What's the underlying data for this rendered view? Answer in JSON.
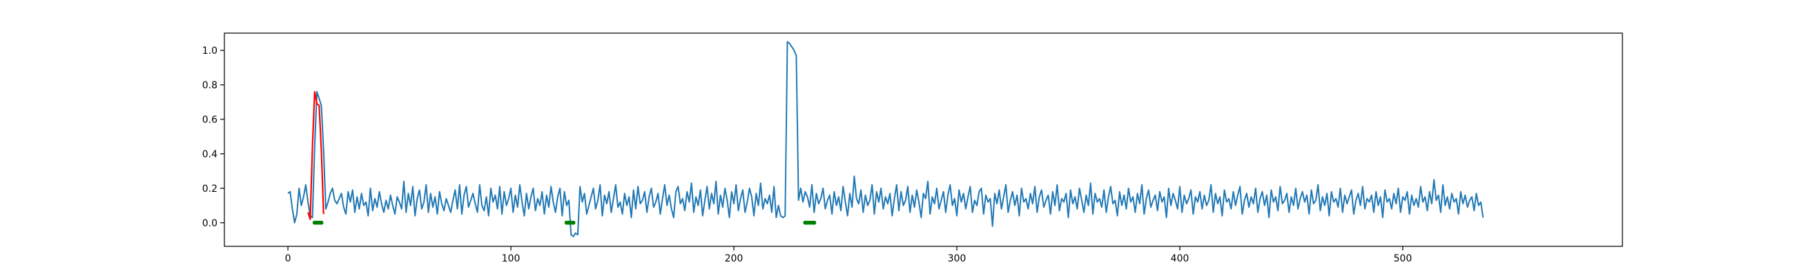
{
  "chart_data": {
    "type": "line",
    "title": "",
    "xlabel": "",
    "ylabel": "",
    "xlim": [
      -28.5,
      598.5
    ],
    "ylim": [
      -0.137,
      1.1
    ],
    "xticks": [
      0,
      100,
      200,
      300,
      400,
      500
    ],
    "yticks": [
      0.0,
      0.2,
      0.4,
      0.6,
      0.8,
      1.0
    ],
    "xtick_labels": [
      "0",
      "100",
      "200",
      "300",
      "400",
      "500"
    ],
    "ytick_labels": [
      "0.0",
      "0.2",
      "0.4",
      "0.6",
      "0.8",
      "1.0"
    ],
    "grid": false,
    "series": [
      {
        "color": "#1f77b4",
        "x_start": 0,
        "values": [
          0.17,
          0.18,
          0.08,
          0.0,
          0.05,
          0.2,
          0.1,
          0.15,
          0.22,
          0.12,
          0.04,
          0.03,
          0.44,
          0.76,
          0.72,
          0.68,
          0.42,
          0.08,
          0.12,
          0.17,
          0.2,
          0.13,
          0.11,
          0.14,
          0.17,
          0.09,
          0.05,
          0.18,
          0.12,
          0.19,
          0.06,
          0.15,
          0.08,
          0.17,
          0.1,
          0.12,
          0.04,
          0.2,
          0.07,
          0.14,
          0.09,
          0.18,
          0.11,
          0.06,
          0.13,
          0.08,
          0.16,
          0.1,
          0.05,
          0.15,
          0.12,
          0.08,
          0.24,
          0.06,
          0.17,
          0.1,
          0.21,
          0.04,
          0.14,
          0.19,
          0.08,
          0.12,
          0.22,
          0.06,
          0.17,
          0.09,
          0.15,
          0.05,
          0.18,
          0.11,
          0.07,
          0.14,
          0.1,
          0.06,
          0.13,
          0.19,
          0.08,
          0.22,
          0.05,
          0.16,
          0.21,
          0.09,
          0.13,
          0.17,
          0.11,
          0.06,
          0.22,
          0.1,
          0.07,
          0.15,
          0.04,
          0.2,
          0.12,
          0.16,
          0.08,
          0.21,
          0.05,
          0.18,
          0.1,
          0.14,
          0.2,
          0.06,
          0.16,
          0.09,
          0.22,
          0.12,
          0.04,
          0.17,
          0.08,
          0.15,
          0.2,
          0.07,
          0.14,
          0.1,
          0.18,
          0.05,
          0.16,
          0.09,
          0.21,
          0.12,
          0.06,
          0.15,
          0.2,
          0.04,
          0.18,
          0.1,
          0.13,
          -0.07,
          -0.08,
          -0.06,
          -0.07,
          0.21,
          0.12,
          0.17,
          0.05,
          0.1,
          0.15,
          0.2,
          0.08,
          0.13,
          0.22,
          0.04,
          0.16,
          0.11,
          0.18,
          0.06,
          0.14,
          0.22,
          0.09,
          0.12,
          0.05,
          0.17,
          0.1,
          0.15,
          0.03,
          0.19,
          0.08,
          0.21,
          0.11,
          0.13,
          0.18,
          0.06,
          0.15,
          0.2,
          0.09,
          0.12,
          0.17,
          0.05,
          0.14,
          0.22,
          0.1,
          0.16,
          0.08,
          0.03,
          0.18,
          0.21,
          0.11,
          0.14,
          0.07,
          0.18,
          0.12,
          0.23,
          0.06,
          0.15,
          0.1,
          0.19,
          0.04,
          0.13,
          0.21,
          0.08,
          0.17,
          0.11,
          0.24,
          0.05,
          0.16,
          0.09,
          0.2,
          0.13,
          0.03,
          0.18,
          0.11,
          0.22,
          0.07,
          0.14,
          0.19,
          0.06,
          0.12,
          0.2,
          0.15,
          0.04,
          0.17,
          0.1,
          0.23,
          0.08,
          0.14,
          0.11,
          0.16,
          0.06,
          0.21,
          0.03,
          0.1,
          0.04,
          0.03,
          0.04,
          1.05,
          1.04,
          1.02,
          1.0,
          0.97,
          0.13,
          0.2,
          0.12,
          0.18,
          0.15,
          0.09,
          0.22,
          0.06,
          0.17,
          0.11,
          0.14,
          0.2,
          0.08,
          0.13,
          0.16,
          0.05,
          0.18,
          0.1,
          0.15,
          0.07,
          0.21,
          0.12,
          0.04,
          0.17,
          0.09,
          0.27,
          0.14,
          0.11,
          0.19,
          0.06,
          0.16,
          0.1,
          0.13,
          0.22,
          0.05,
          0.18,
          0.12,
          0.2,
          0.08,
          0.15,
          0.11,
          0.17,
          0.04,
          0.14,
          0.22,
          0.07,
          0.18,
          0.1,
          0.13,
          0.21,
          0.06,
          0.16,
          0.09,
          0.19,
          0.12,
          0.03,
          0.17,
          0.14,
          0.24,
          0.05,
          0.15,
          0.11,
          0.2,
          0.08,
          0.13,
          0.18,
          0.06,
          0.16,
          0.22,
          0.1,
          0.14,
          0.04,
          0.19,
          0.12,
          0.17,
          0.08,
          0.15,
          0.21,
          0.06,
          0.13,
          0.1,
          0.18,
          0.2,
          0.05,
          0.16,
          0.12,
          0.14,
          -0.02,
          0.17,
          0.11,
          0.19,
          0.08,
          0.15,
          0.22,
          0.06,
          0.13,
          0.18,
          0.1,
          0.16,
          0.04,
          0.2,
          0.12,
          0.14,
          0.08,
          0.17,
          0.11,
          0.21,
          0.06,
          0.15,
          0.19,
          0.09,
          0.13,
          0.16,
          0.05,
          0.18,
          0.1,
          0.22,
          0.07,
          0.14,
          0.12,
          0.17,
          0.03,
          0.19,
          0.11,
          0.15,
          0.08,
          0.2,
          0.13,
          0.06,
          0.16,
          0.1,
          0.23,
          0.05,
          0.17,
          0.12,
          0.14,
          0.09,
          0.19,
          0.06,
          0.15,
          0.21,
          0.11,
          0.13,
          0.04,
          0.18,
          0.1,
          0.16,
          0.08,
          0.2,
          0.12,
          0.15,
          0.06,
          0.17,
          0.11,
          0.22,
          0.05,
          0.14,
          0.19,
          0.09,
          0.13,
          0.16,
          0.07,
          0.18,
          0.12,
          0.15,
          0.03,
          0.2,
          0.1,
          0.17,
          0.13,
          0.08,
          0.21,
          0.06,
          0.16,
          0.11,
          0.14,
          0.19,
          0.05,
          0.15,
          0.12,
          0.18,
          0.08,
          0.16,
          0.1,
          0.13,
          0.22,
          0.06,
          0.17,
          0.11,
          0.15,
          0.04,
          0.19,
          0.12,
          0.14,
          0.08,
          0.18,
          0.1,
          0.16,
          0.21,
          0.05,
          0.13,
          0.17,
          0.09,
          0.15,
          0.11,
          0.2,
          0.06,
          0.14,
          0.18,
          0.1,
          0.16,
          0.03,
          0.19,
          0.12,
          0.15,
          0.07,
          0.21,
          0.11,
          0.13,
          0.17,
          0.06,
          0.15,
          0.1,
          0.2,
          0.08,
          0.14,
          0.18,
          0.12,
          0.16,
          0.05,
          0.19,
          0.11,
          0.13,
          0.22,
          0.07,
          0.15,
          0.1,
          0.17,
          0.04,
          0.18,
          0.12,
          0.14,
          0.09,
          0.2,
          0.06,
          0.16,
          0.11,
          0.15,
          0.19,
          0.05,
          0.13,
          0.17,
          0.1,
          0.21,
          0.08,
          0.14,
          0.12,
          0.16,
          0.06,
          0.18,
          0.1,
          0.15,
          0.03,
          0.19,
          0.12,
          0.14,
          0.08,
          0.17,
          0.11,
          0.2,
          0.06,
          0.15,
          0.13,
          0.18,
          0.05,
          0.16,
          0.1,
          0.14,
          0.09,
          0.21,
          0.12,
          0.15,
          0.07,
          0.18,
          0.11,
          0.25,
          0.13,
          0.16,
          0.06,
          0.22,
          0.1,
          0.15,
          0.08,
          0.17,
          0.12,
          0.14,
          0.05,
          0.18,
          0.11,
          0.16,
          0.09,
          0.13,
          0.15,
          0.07,
          0.17,
          0.1,
          0.12,
          0.03
        ]
      },
      {
        "color": "#ff0000",
        "x": [
          9,
          10,
          11,
          12,
          13,
          14,
          15,
          16
        ],
        "values": [
          0.06,
          0.02,
          0.44,
          0.76,
          0.69,
          0.68,
          0.42,
          0.05
        ]
      }
    ],
    "markers": {
      "color": "#008000",
      "y": 0.0,
      "x": [
        12,
        13,
        14,
        15,
        125,
        126,
        127,
        128,
        232,
        233,
        234,
        235,
        236
      ]
    }
  }
}
